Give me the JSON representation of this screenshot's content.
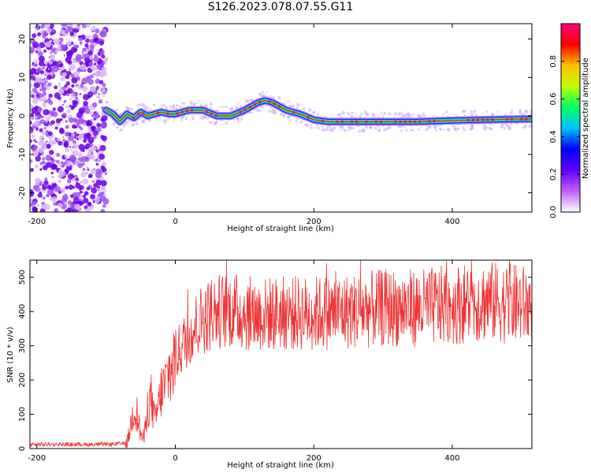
{
  "title": "S126.2023.078.07.55.G11",
  "chart_data": [
    {
      "type": "heatmap",
      "xlabel": "Height of straight line (km)",
      "ylabel": "Frequency (Hz)",
      "xlim": [
        -210,
        515
      ],
      "ylim": [
        -25,
        24
      ],
      "x_ticks": [
        -200,
        0,
        200,
        400
      ],
      "y_ticks": [
        -20,
        -10,
        0,
        10,
        20
      ],
      "colorbar": {
        "label": "Normalized spectral amplitude",
        "range": [
          0,
          1
        ],
        "ticks": [
          0.0,
          0.2,
          0.4,
          0.6,
          0.8
        ],
        "colormap": [
          "#ffffff",
          "#c060ff",
          "#6000ff",
          "#0000ff",
          "#00c0ff",
          "#00ff60",
          "#c0ff00",
          "#ffc000",
          "#ff0000",
          "#ff0080"
        ]
      },
      "noise_region_x": [
        -210,
        -100
      ],
      "frequency_trace": {
        "x": [
          -100,
          -90,
          -80,
          -70,
          -60,
          -50,
          -40,
          -30,
          -20,
          -10,
          0,
          20,
          40,
          60,
          80,
          100,
          110,
          120,
          130,
          140,
          150,
          160,
          180,
          200,
          220,
          250,
          280,
          300,
          350,
          400,
          450,
          500,
          515
        ],
        "y": [
          1.5,
          0.5,
          -1.5,
          0.5,
          -0.5,
          1.0,
          0.0,
          0.5,
          1.0,
          0.5,
          0.5,
          1.5,
          1.5,
          0.0,
          0.0,
          1.5,
          2.5,
          3.5,
          4.0,
          3.5,
          2.5,
          1.5,
          0.5,
          -1.0,
          -1.5,
          -1.5,
          -1.5,
          -1.5,
          -1.5,
          -1.2,
          -1.0,
          -0.8,
          -0.8
        ]
      }
    },
    {
      "type": "line",
      "xlabel": "Height of straight line (km)",
      "ylabel": "SNR (10 * v/v)",
      "xlim": [
        -210,
        515
      ],
      "ylim": [
        0,
        550
      ],
      "x_ticks": [
        -200,
        0,
        200,
        400
      ],
      "y_ticks": [
        0,
        100,
        200,
        300,
        400,
        500
      ],
      "color": "#ee3333",
      "series": [
        {
          "x": [
            -210,
            -150,
            -100,
            -70,
            -65,
            -60,
            -55,
            -50,
            -45,
            -40,
            -35,
            -30,
            -25,
            -20,
            -15,
            -10,
            -5,
            0,
            10,
            20,
            30,
            40,
            60,
            80,
            100,
            120,
            150,
            200,
            250,
            300,
            350,
            400,
            450,
            500,
            515
          ],
          "y": [
            12,
            12,
            12,
            15,
            60,
            120,
            100,
            40,
            30,
            120,
            150,
            80,
            120,
            170,
            180,
            220,
            230,
            270,
            300,
            330,
            360,
            380,
            400,
            405,
            395,
            390,
            395,
            395,
            400,
            410,
            410,
            420,
            430,
            420,
            415
          ]
        }
      ]
    }
  ]
}
